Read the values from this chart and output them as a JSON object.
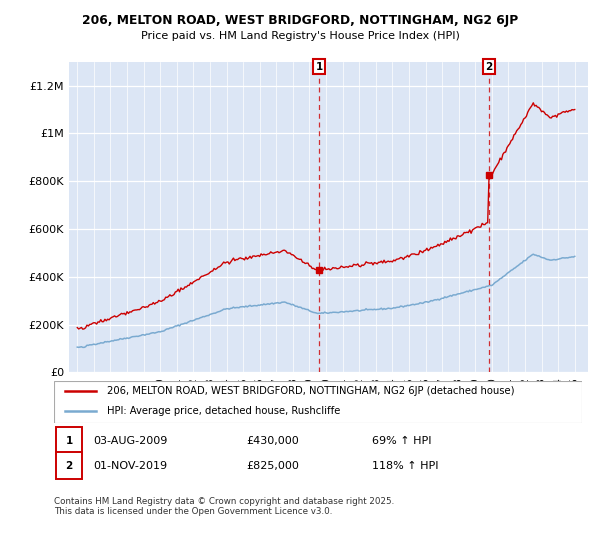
{
  "title": "206, MELTON ROAD, WEST BRIDGFORD, NOTTINGHAM, NG2 6JP",
  "subtitle": "Price paid vs. HM Land Registry's House Price Index (HPI)",
  "legend_line1": "206, MELTON ROAD, WEST BRIDGFORD, NOTTINGHAM, NG2 6JP (detached house)",
  "legend_line2": "HPI: Average price, detached house, Rushcliffe",
  "footer": "Contains HM Land Registry data © Crown copyright and database right 2025.\nThis data is licensed under the Open Government Licence v3.0.",
  "sale1_date": "03-AUG-2009",
  "sale1_price": "£430,000",
  "sale1_hpi": "69% ↑ HPI",
  "sale2_date": "01-NOV-2019",
  "sale2_price": "£825,000",
  "sale2_hpi": "118% ↑ HPI",
  "sale1_year": 2009.58,
  "sale1_value": 430000,
  "sale2_year": 2019.83,
  "sale2_value": 825000,
  "property_color": "#cc0000",
  "hpi_color": "#7aaad0",
  "background_color": "#e8eef8",
  "plot_bg": "#dce6f5",
  "ylim": [
    0,
    1300000
  ],
  "xlim_start": 1994.5,
  "xlim_end": 2025.8,
  "yticks": [
    0,
    200000,
    400000,
    600000,
    800000,
    1000000,
    1200000
  ],
  "ytick_labels": [
    "£0",
    "£200K",
    "£400K",
    "£600K",
    "£800K",
    "£1M",
    "£1.2M"
  ]
}
